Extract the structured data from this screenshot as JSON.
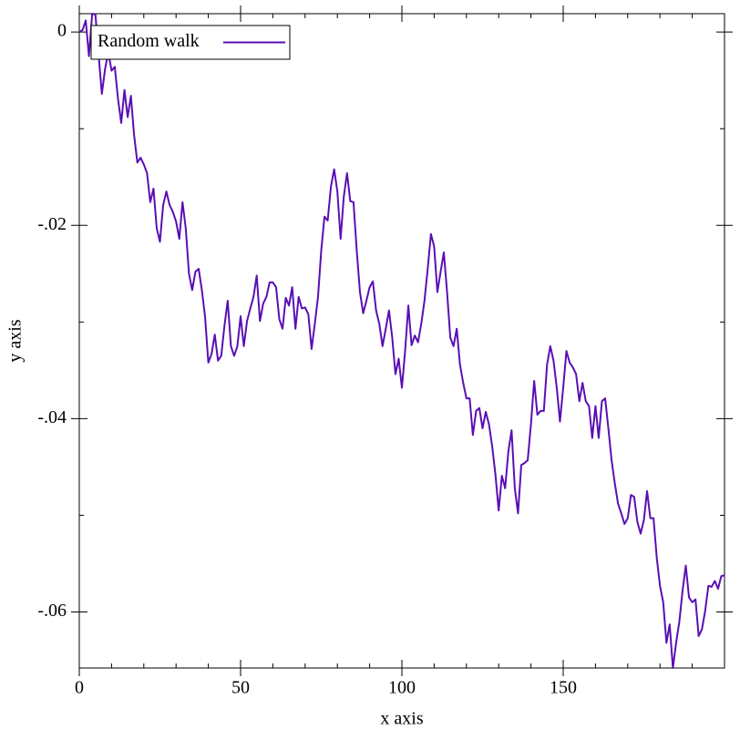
{
  "chart_data": {
    "type": "line",
    "xlabel": "x axis",
    "ylabel": "y axis",
    "xlim": [
      0,
      200
    ],
    "ylim": [
      -0.0658,
      0.0019
    ],
    "xticks": [
      0,
      50,
      100,
      150
    ],
    "yticks": [
      0,
      {
        "value": -0.02,
        "label": "-.02"
      },
      {
        "value": -0.04,
        "label": "-.04"
      },
      {
        "value": -0.06,
        "label": "-.06"
      }
    ],
    "xminorticks": [
      10,
      20,
      30,
      40,
      60,
      70,
      80,
      90,
      110,
      120,
      130,
      140,
      160,
      170,
      180,
      190
    ],
    "yminorticks": [
      -0.01,
      -0.03,
      -0.05
    ],
    "legend": "top-left",
    "x": [
      0,
      1,
      2,
      3,
      4,
      5,
      6,
      7,
      8,
      9,
      10,
      11,
      12,
      13,
      14,
      15,
      16,
      17,
      18,
      19,
      20,
      21,
      22,
      23,
      24,
      25,
      26,
      27,
      28,
      29,
      30,
      31,
      32,
      33,
      34,
      35,
      36,
      37,
      38,
      39,
      40,
      41,
      42,
      43,
      44,
      45,
      46,
      47,
      48,
      49,
      50,
      51,
      52,
      53,
      54,
      55,
      56,
      57,
      58,
      59,
      60,
      61,
      62,
      63,
      64,
      65,
      66,
      67,
      68,
      69,
      70,
      71,
      72,
      73,
      74,
      75,
      76,
      77,
      78,
      79,
      80,
      81,
      82,
      83,
      84,
      85,
      86,
      87,
      88,
      89,
      90,
      91,
      92,
      93,
      94,
      95,
      96,
      97,
      98,
      99,
      100,
      101,
      102,
      103,
      104,
      105,
      106,
      107,
      108,
      109,
      110,
      111,
      112,
      113,
      114,
      115,
      116,
      117,
      118,
      119,
      120,
      121,
      122,
      123,
      124,
      125,
      126,
      127,
      128,
      129,
      130,
      131,
      132,
      133,
      134,
      135,
      136,
      137,
      138,
      139,
      140,
      141,
      142,
      143,
      144,
      145,
      146,
      147,
      148,
      149,
      150,
      151,
      152,
      153,
      154,
      155,
      156,
      157,
      158,
      159,
      160,
      161,
      162,
      163,
      164,
      165,
      166,
      167,
      168,
      169,
      170,
      171,
      172,
      173,
      174,
      175,
      176,
      177,
      178,
      179,
      180,
      181,
      182,
      183,
      184,
      185,
      186,
      187,
      188,
      189,
      190,
      191,
      192,
      193,
      194,
      195,
      196,
      197,
      198,
      199,
      200
    ],
    "series": [
      {
        "name": "Random walk",
        "color": "#5a0fb4",
        "values": [
          0,
          0.0002,
          0.0012,
          -0.0025,
          0.0019,
          0.0018,
          -0.0024,
          -0.0064,
          -0.0038,
          -0.0021,
          -0.004,
          -0.0036,
          -0.0069,
          -0.0094,
          -0.006,
          -0.0088,
          -0.0066,
          -0.0107,
          -0.0135,
          -0.013,
          -0.0137,
          -0.0146,
          -0.0176,
          -0.0162,
          -0.0203,
          -0.0217,
          -0.0179,
          -0.0165,
          -0.0179,
          -0.0186,
          -0.0196,
          -0.0214,
          -0.0176,
          -0.0203,
          -0.025,
          -0.0267,
          -0.0248,
          -0.0245,
          -0.0267,
          -0.0295,
          -0.0342,
          -0.0333,
          -0.0313,
          -0.034,
          -0.0335,
          -0.0304,
          -0.0278,
          -0.0325,
          -0.0335,
          -0.0325,
          -0.0294,
          -0.0325,
          -0.0299,
          -0.0286,
          -0.0274,
          -0.0252,
          -0.0299,
          -0.0281,
          -0.0274,
          -0.0259,
          -0.0259,
          -0.0264,
          -0.0297,
          -0.0307,
          -0.0275,
          -0.0283,
          -0.0264,
          -0.0307,
          -0.0274,
          -0.0286,
          -0.0285,
          -0.0292,
          -0.0328,
          -0.0302,
          -0.0274,
          -0.0226,
          -0.0191,
          -0.0195,
          -0.016,
          -0.0142,
          -0.0165,
          -0.0214,
          -0.017,
          -0.0146,
          -0.0175,
          -0.0176,
          -0.0226,
          -0.0269,
          -0.0291,
          -0.0278,
          -0.0264,
          -0.0258,
          -0.0288,
          -0.0302,
          -0.0325,
          -0.0307,
          -0.0288,
          -0.0316,
          -0.0354,
          -0.0338,
          -0.0368,
          -0.033,
          -0.0283,
          -0.0324,
          -0.0314,
          -0.0321,
          -0.0302,
          -0.0278,
          -0.0245,
          -0.0209,
          -0.0222,
          -0.0269,
          -0.0248,
          -0.0228,
          -0.0269,
          -0.0316,
          -0.0325,
          -0.0307,
          -0.0344,
          -0.0363,
          -0.0379,
          -0.0379,
          -0.0417,
          -0.0392,
          -0.0389,
          -0.041,
          -0.0393,
          -0.0406,
          -0.0429,
          -0.0458,
          -0.0495,
          -0.0459,
          -0.0472,
          -0.0434,
          -0.0412,
          -0.0472,
          -0.0498,
          -0.0448,
          -0.0446,
          -0.0443,
          -0.0406,
          -0.0361,
          -0.0396,
          -0.0392,
          -0.0392,
          -0.0344,
          -0.0325,
          -0.034,
          -0.0368,
          -0.0403,
          -0.0368,
          -0.033,
          -0.0342,
          -0.0347,
          -0.0354,
          -0.0382,
          -0.0363,
          -0.0382,
          -0.0387,
          -0.042,
          -0.0387,
          -0.042,
          -0.0382,
          -0.0379,
          -0.041,
          -0.0443,
          -0.0467,
          -0.0488,
          -0.0498,
          -0.0509,
          -0.0503,
          -0.0479,
          -0.0481,
          -0.0507,
          -0.0519,
          -0.0505,
          -0.0475,
          -0.0503,
          -0.0503,
          -0.0544,
          -0.0573,
          -0.059,
          -0.0632,
          -0.0613,
          -0.0658,
          -0.0632,
          -0.061,
          -0.0578,
          -0.0552,
          -0.0585,
          -0.059,
          -0.0587,
          -0.0625,
          -0.0618,
          -0.0599,
          -0.0573,
          -0.0574,
          -0.0568,
          -0.0576,
          -0.0563,
          -0.0562
        ]
      }
    ]
  }
}
